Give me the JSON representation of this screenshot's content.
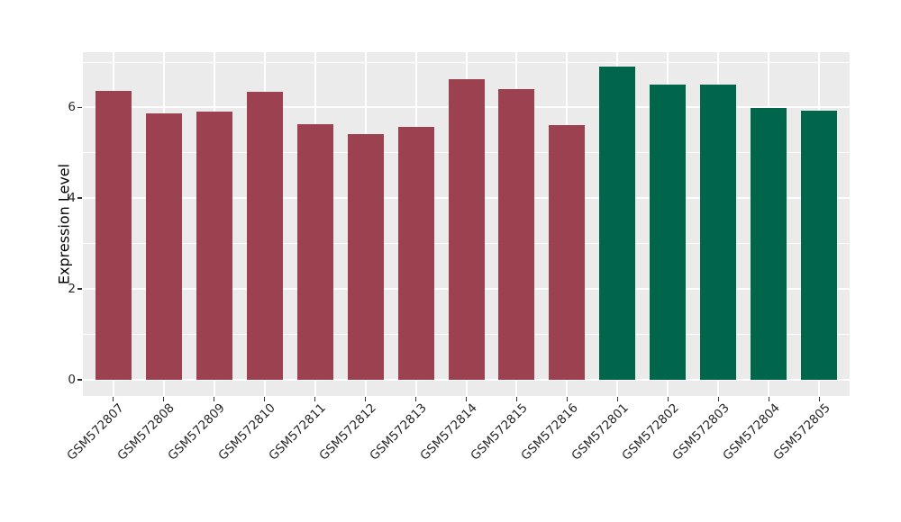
{
  "chart_data": {
    "type": "bar",
    "title": "",
    "xlabel": "",
    "ylabel": "Expression Level",
    "categories": [
      "GSM572807",
      "GSM572808",
      "GSM572809",
      "GSM572810",
      "GSM572811",
      "GSM572812",
      "GSM572813",
      "GSM572814",
      "GSM572815",
      "GSM572816",
      "GSM572801",
      "GSM572802",
      "GSM572803",
      "GSM572804",
      "GSM572805"
    ],
    "values": [
      6.37,
      5.88,
      5.92,
      6.35,
      5.63,
      5.41,
      5.58,
      6.63,
      6.41,
      5.61,
      6.9,
      6.5,
      6.5,
      5.99,
      5.94
    ],
    "bar_colors": [
      "#9B4150",
      "#9B4150",
      "#9B4150",
      "#9B4150",
      "#9B4150",
      "#9B4150",
      "#9B4150",
      "#9B4150",
      "#9B4150",
      "#9B4150",
      "#00664B",
      "#00664B",
      "#00664B",
      "#00664B",
      "#00664B"
    ],
    "groups": [
      {
        "name": "group-red",
        "color": "#9B4150",
        "from": "GSM572807",
        "to": "GSM572816"
      },
      {
        "name": "group-green",
        "color": "#00664B",
        "from": "GSM572801",
        "to": "GSM572805"
      }
    ],
    "yticks": [
      0,
      2,
      4,
      6
    ],
    "yticklabels": [
      "0",
      "2",
      "4",
      "6"
    ],
    "minor_yticks": [
      1,
      3,
      5,
      7
    ],
    "ylim": [
      -0.36,
      7.22
    ],
    "x_tick_rotation": -45,
    "grid": "on",
    "legend": "none",
    "panel_background": "#EBEBEB",
    "grid_color": "#FFFFFF",
    "tick_mark_color": "#333333",
    "axis_text_color": "#262626",
    "axis_title_color": "#000000"
  }
}
